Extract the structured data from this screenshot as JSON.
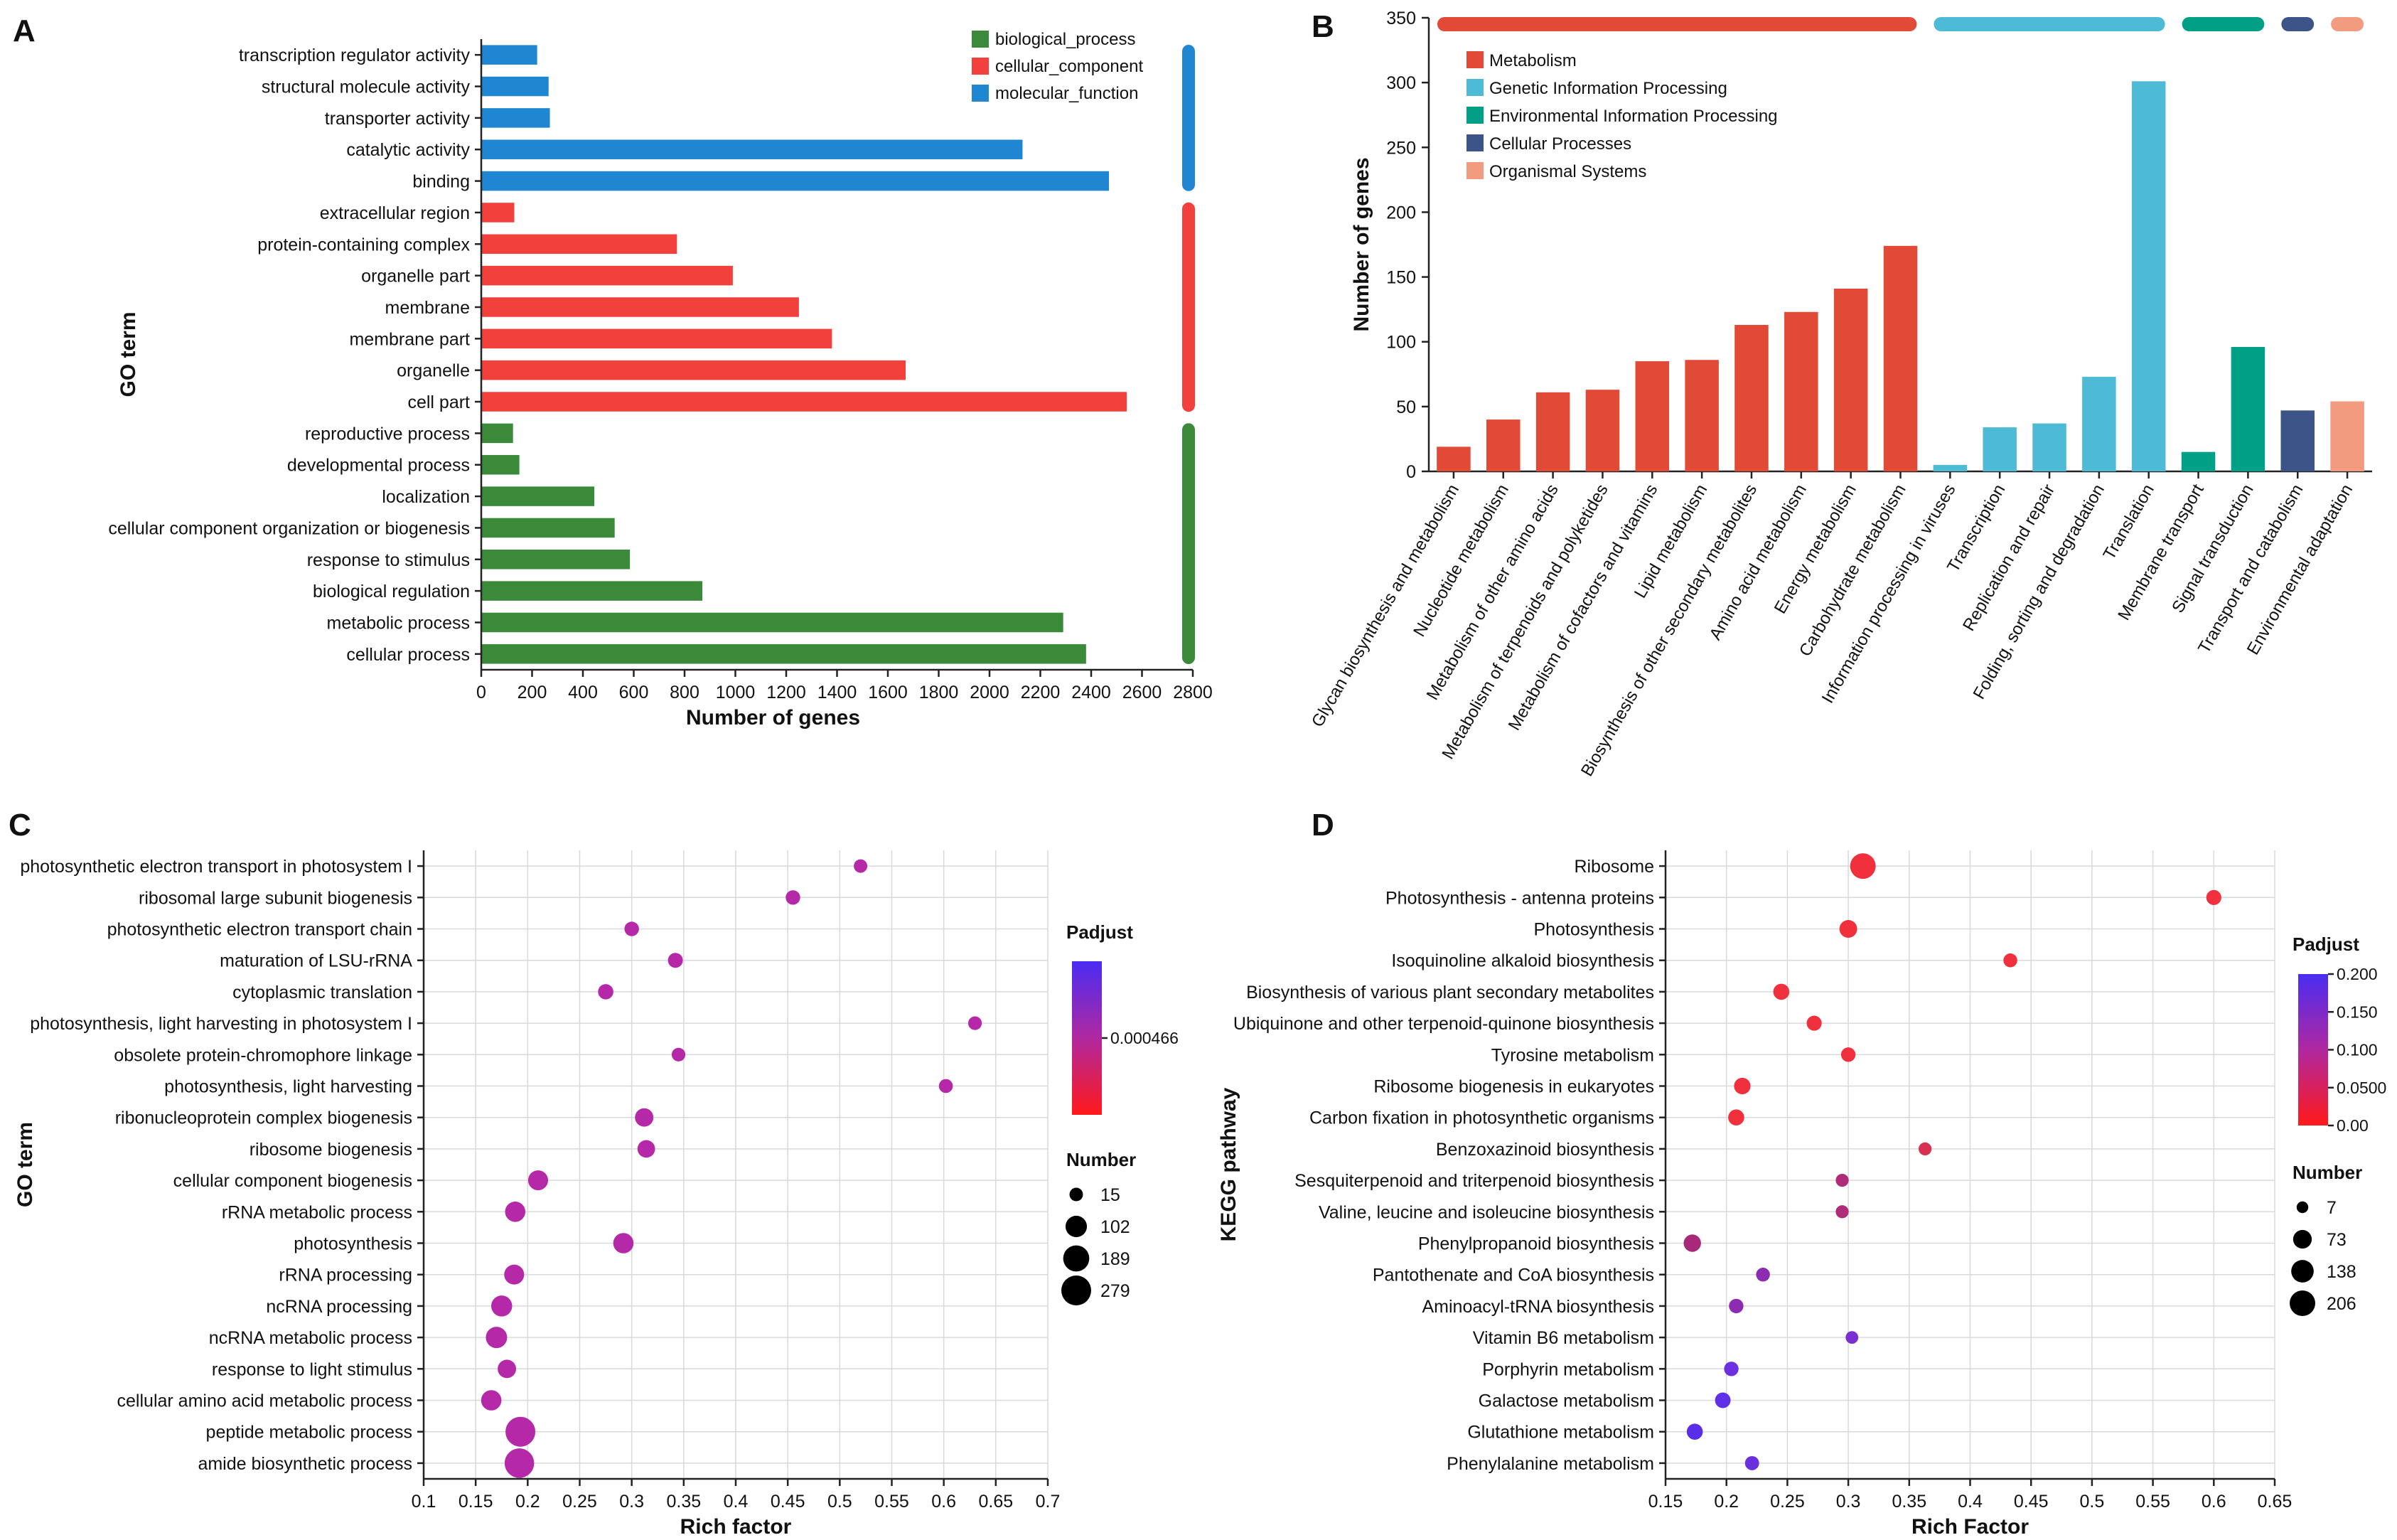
{
  "chart_data": [
    {
      "panel": "A",
      "type": "bar",
      "orientation": "horizontal",
      "xlabel": "Number of genes",
      "ylabel": "GO term",
      "xlim": [
        0,
        2800
      ],
      "xticks": [
        0,
        200,
        400,
        600,
        800,
        1000,
        1200,
        1400,
        1600,
        1800,
        2000,
        2200,
        2400,
        2600,
        2800
      ],
      "grid": false,
      "legend_position": "top-right",
      "legend": [
        {
          "name": "biological_process",
          "color": "#3a8a3a"
        },
        {
          "name": "cellular_component",
          "color": "#f2413c"
        },
        {
          "name": "molecular_function",
          "color": "#1f86d1"
        }
      ],
      "categories": [
        "transcription regulator activity",
        "structural molecule activity",
        "transporter activity",
        "catalytic activity",
        "binding",
        "extracellular region",
        "protein-containing complex",
        "organelle part",
        "membrane",
        "membrane part",
        "organelle",
        "cell part",
        "reproductive process",
        "developmental process",
        "localization",
        "cellular component organization or biogenesis",
        "response to stimulus",
        "biological regulation",
        "metabolic process",
        "cellular process"
      ],
      "values": [
        220,
        265,
        270,
        2130,
        2470,
        130,
        770,
        990,
        1250,
        1380,
        1670,
        2540,
        125,
        150,
        445,
        525,
        585,
        870,
        2290,
        2380
      ],
      "groups": [
        "molecular_function",
        "molecular_function",
        "molecular_function",
        "molecular_function",
        "molecular_function",
        "cellular_component",
        "cellular_component",
        "cellular_component",
        "cellular_component",
        "cellular_component",
        "cellular_component",
        "cellular_component",
        "biological_process",
        "biological_process",
        "biological_process",
        "biological_process",
        "biological_process",
        "biological_process",
        "biological_process",
        "biological_process"
      ]
    },
    {
      "panel": "B",
      "type": "bar",
      "ylabel": "Number of genes",
      "xlabel": "",
      "ylim": [
        0,
        350
      ],
      "yticks": [
        0,
        50,
        100,
        150,
        200,
        250,
        300,
        350
      ],
      "grid": false,
      "legend_position": "top-left",
      "legend": [
        {
          "name": "Metabolism",
          "color": "#e14a37"
        },
        {
          "name": "Genetic Information Processing",
          "color": "#4dbbd5"
        },
        {
          "name": "Environmental Information Processing",
          "color": "#00a087"
        },
        {
          "name": "Cellular Processes",
          "color": "#3c5488"
        },
        {
          "name": "Organismal Systems",
          "color": "#f39b7f"
        }
      ],
      "categories": [
        "Glycan biosynthesis and metabolism",
        "Nucleotide metabolism",
        "Metabolism of other amino acids",
        "Metabolism of terpenoids and polyketides",
        "Metabolism of cofactors and vitamins",
        "Lipid metabolism",
        "Biosynthesis of other secondary metabolites",
        "Amino acid metabolism",
        "Energy metabolism",
        "Carbohydrate metabolism",
        "Information processing in viruses",
        "Transcription",
        "Replication and repair",
        "Folding, sorting and degradation",
        "Translation",
        "Membrane transport",
        "Signal transduction",
        "Transport and catabolism",
        "Environmental adaptation"
      ],
      "values": [
        19,
        40,
        61,
        63,
        85,
        86,
        113,
        123,
        141,
        174,
        5,
        34,
        37,
        73,
        301,
        15,
        96,
        47,
        54
      ],
      "groups": [
        "Metabolism",
        "Metabolism",
        "Metabolism",
        "Metabolism",
        "Metabolism",
        "Metabolism",
        "Metabolism",
        "Metabolism",
        "Metabolism",
        "Metabolism",
        "Genetic Information Processing",
        "Genetic Information Processing",
        "Genetic Information Processing",
        "Genetic Information Processing",
        "Genetic Information Processing",
        "Environmental Information Processing",
        "Environmental Information Processing",
        "Cellular Processes",
        "Organismal Systems"
      ]
    },
    {
      "panel": "C",
      "type": "scatter",
      "xlabel": "Rich factor",
      "ylabel": "GO term",
      "xlim": [
        0.1,
        0.7
      ],
      "xticks": [
        0.1,
        0.15,
        0.2,
        0.25,
        0.3,
        0.35,
        0.4,
        0.45,
        0.5,
        0.55,
        0.6,
        0.65,
        0.7
      ],
      "xtick_labels": [
        "0.1",
        "0.15",
        "0.2",
        "0.25",
        "0.3",
        "0.35",
        "0.4",
        "0.45",
        "0.5",
        "0.55",
        "0.6",
        "0.65",
        "0.7"
      ],
      "grid": true,
      "color_legend_title": "Padjust",
      "color_legend_labels": [
        "0.000466"
      ],
      "size_legend_title": "Number",
      "size_legend": [
        15,
        102,
        189,
        279
      ],
      "categories": [
        "photosynthetic electron transport in photosystem I",
        "ribosomal large subunit biogenesis",
        "photosynthetic electron transport chain",
        "maturation of LSU-rRNA",
        "cytoplasmic translation",
        "photosynthesis, light harvesting in photosystem I",
        "obsolete protein-chromophore linkage",
        "photosynthesis, light harvesting",
        "ribonucleoprotein complex biogenesis",
        "ribosome biogenesis",
        "cellular component biogenesis",
        "rRNA metabolic process",
        "photosynthesis",
        "rRNA processing",
        "ncRNA processing",
        "ncRNA metabolic process",
        "response to light stimulus",
        "cellular amino acid metabolic process",
        "peptide metabolic process",
        "amide biosynthetic process"
      ],
      "x": [
        0.52,
        0.455,
        0.3,
        0.342,
        0.275,
        0.63,
        0.345,
        0.602,
        0.312,
        0.314,
        0.21,
        0.188,
        0.292,
        0.187,
        0.175,
        0.17,
        0.18,
        0.165,
        0.193,
        0.192
      ],
      "sizes": [
        15,
        22,
        22,
        25,
        28,
        16,
        16,
        18,
        60,
        50,
        80,
        85,
        85,
        80,
        95,
        100,
        60,
        85,
        279,
        270
      ],
      "padj_colors": [
        "#b528a8",
        "#b528a8",
        "#b528a8",
        "#b528a8",
        "#b528a8",
        "#b528a8",
        "#b528a8",
        "#b528a8",
        "#b528a8",
        "#b528a8",
        "#b528a8",
        "#b528a8",
        "#b528a8",
        "#b528a8",
        "#b528a8",
        "#b528a8",
        "#b528a8",
        "#b528a8",
        "#b528a8",
        "#b528a8"
      ]
    },
    {
      "panel": "D",
      "type": "scatter",
      "xlabel": "Rich Factor",
      "ylabel": "KEGG pathway",
      "xlim": [
        0.15,
        0.65
      ],
      "xticks": [
        0.15,
        0.2,
        0.25,
        0.3,
        0.35,
        0.4,
        0.45,
        0.5,
        0.55,
        0.6,
        0.65
      ],
      "xtick_labels": [
        "0.15",
        "0.2",
        "0.25",
        "0.3",
        "0.35",
        "0.4",
        "0.45",
        "0.5",
        "0.55",
        "0.6",
        "0.65"
      ],
      "grid": true,
      "color_legend_title": "Padjust",
      "color_legend_labels": [
        "0.200",
        "0.150",
        "0.100",
        "0.0500",
        "0.00"
      ],
      "size_legend_title": "Number",
      "size_legend": [
        7,
        73,
        138,
        206
      ],
      "categories": [
        "Ribosome",
        "Photosynthesis - antenna proteins",
        "Photosynthesis",
        "Isoquinoline alkaloid biosynthesis",
        "Biosynthesis of various plant secondary metabolites",
        "Ubiquinone and other terpenoid-quinone biosynthesis",
        "Tyrosine metabolism",
        "Ribosome biogenesis in eukaryotes",
        "Carbon fixation in photosynthetic organisms",
        "Benzoxazinoid biosynthesis",
        "Sesquiterpenoid and triterpenoid biosynthesis",
        "Valine, leucine and isoleucine biosynthesis",
        "Phenylpropanoid biosynthesis",
        "Pantothenate and CoA biosynthesis",
        "Aminoacyl-tRNA biosynthesis",
        "Vitamin B6 metabolism",
        "Porphyrin metabolism",
        "Galactose metabolism",
        "Glutathione metabolism",
        "Phenylalanine metabolism"
      ],
      "x": [
        0.312,
        0.6,
        0.3,
        0.433,
        0.245,
        0.272,
        0.3,
        0.213,
        0.208,
        0.363,
        0.295,
        0.295,
        0.172,
        0.23,
        0.208,
        0.303,
        0.204,
        0.197,
        0.174,
        0.221
      ],
      "sizes": [
        206,
        30,
        60,
        20,
        40,
        30,
        25,
        45,
        40,
        14,
        14,
        14,
        55,
        20,
        25,
        12,
        25,
        35,
        40,
        22
      ],
      "padj_colors": [
        "#f0303c",
        "#f0303c",
        "#f0303c",
        "#f0303c",
        "#f0303c",
        "#f0303c",
        "#f0303c",
        "#f0303c",
        "#f0303c",
        "#d73050",
        "#b12c78",
        "#b12c78",
        "#a8287a",
        "#8c2cb0",
        "#8c2cb0",
        "#7a30d0",
        "#6d30e0",
        "#6030e8",
        "#5a2ee8",
        "#6a30e0"
      ]
    }
  ]
}
